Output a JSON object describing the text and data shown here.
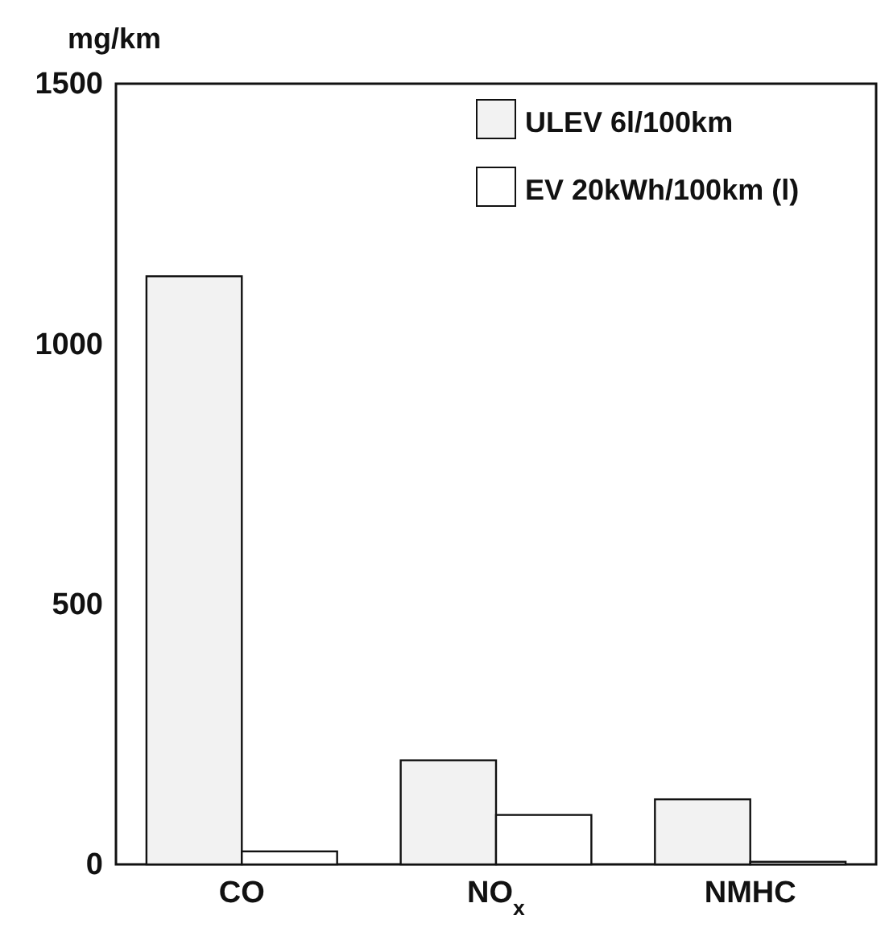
{
  "chart_data": {
    "type": "bar",
    "ylabel": "mg/km",
    "categories": [
      "CO",
      "NO$_{x}$",
      "NMHC"
    ],
    "series": [
      {
        "name": "ULEV 6l/100km",
        "color": "#f2f2f2",
        "values": [
          1130,
          200,
          125
        ]
      },
      {
        "name": "EV 20kWh/100km (l)",
        "color": "#ffffff",
        "values": [
          25,
          95,
          5
        ]
      }
    ],
    "ylim": [
      0,
      1500
    ],
    "yticks": [
      0,
      500,
      1000,
      1500
    ],
    "grid": false,
    "legend": "top right"
  }
}
